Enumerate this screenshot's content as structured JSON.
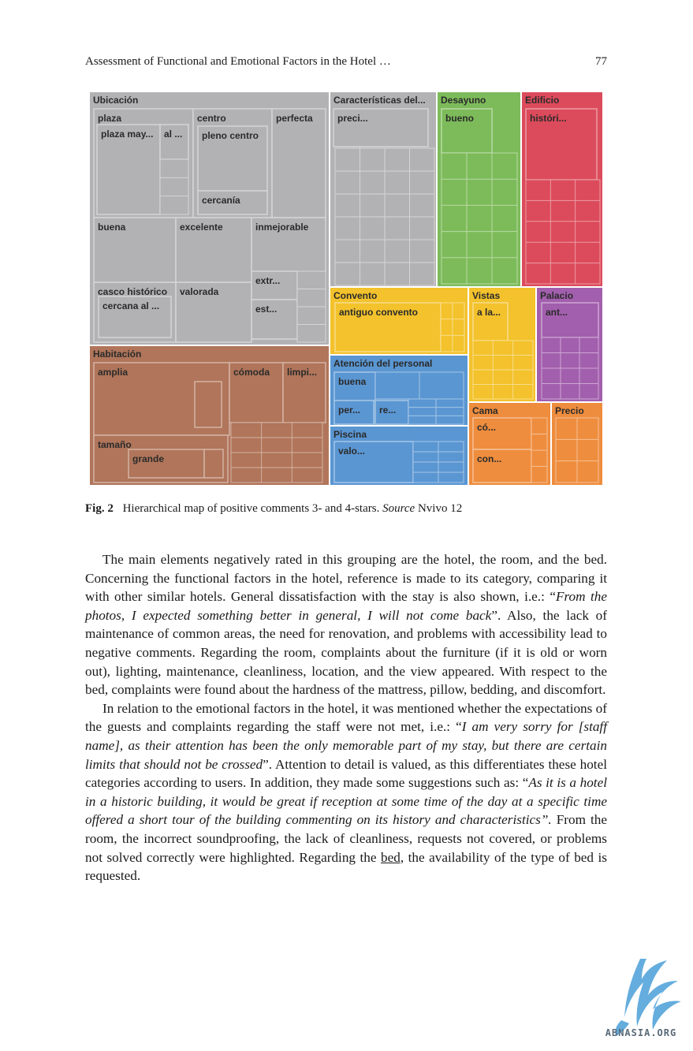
{
  "running_head": {
    "title": "Assessment of Functional and Emotional Factors in the Hotel …",
    "page_number": "77"
  },
  "figure": {
    "label": "Fig. 2",
    "caption_main": "Hierarchical map of positive comments 3- and 4-stars.",
    "caption_source_italic": "Source",
    "caption_source_rest": "Nvivo 12"
  },
  "chart_data": {
    "type": "treemap",
    "groups": [
      {
        "name": "Ubicación",
        "color": "#b2b2b4",
        "children": [
          "plaza",
          "plaza may...",
          "al ...",
          "centro",
          "pleno centro",
          "cercanía",
          "perfecta",
          "buena",
          "excelente",
          "inmejorable",
          "casco histórico",
          "cercana al ...",
          "valorada",
          "extr...",
          "est..."
        ]
      },
      {
        "name": "Características del...",
        "color": "#b2b2b4",
        "children": [
          "preci..."
        ]
      },
      {
        "name": "Desayuno",
        "color": "#7dbb5a",
        "children": [
          "bueno"
        ]
      },
      {
        "name": "Edificio",
        "color": "#dc4b5b",
        "children": [
          "históri..."
        ]
      },
      {
        "name": "Convento",
        "color": "#f3c22c",
        "children": [
          "antiguo convento"
        ]
      },
      {
        "name": "Vistas",
        "color": "#f3c22c",
        "children": [
          "a la..."
        ]
      },
      {
        "name": "Palacio",
        "color": "#a25fad",
        "children": [
          "ant..."
        ]
      },
      {
        "name": "Habitación",
        "color": "#b0755a",
        "children": [
          "amplia",
          "cómoda",
          "limpi...",
          "tamaño",
          "grande"
        ]
      },
      {
        "name": "Atención del personal",
        "color": "#5a96d2",
        "children": [
          "buena",
          "per...",
          "re..."
        ]
      },
      {
        "name": "Piscina",
        "color": "#5a96d2",
        "children": [
          "valo..."
        ]
      },
      {
        "name": "Cama",
        "color": "#ee8d3e",
        "children": [
          "có...",
          "con..."
        ]
      },
      {
        "name": "Precio",
        "color": "#ee8d3e",
        "children": []
      }
    ]
  },
  "body": {
    "p1_a": "The main elements negatively rated in this grouping are the hotel, the room, and the bed. Concerning the functional factors in the hotel, reference is made to its category, comparing it with other similar hotels. General dissatisfaction with the stay is also shown, i.e.: “",
    "p1_quote": "From the photos, I expected something better in general, I will not come back",
    "p1_b": "”. Also, the lack of maintenance of common areas, the need for renovation, and problems with accessibility lead to negative comments. Regarding the room, complaints about the furniture (if it is old or worn out), lighting, maintenance, cleanliness, location, and the view appeared. With respect to the bed, complaints were found about the hardness of the mattress, pillow, bedding, and discomfort.",
    "p2_a": "In relation to the emotional factors in the hotel, it was mentioned whether the expectations of the guests and complaints regarding the staff were not met, i.e.: “",
    "p2_quote1": "I am very sorry for [staff name], as their attention has been the only memorable part of my stay, but there are certain limits that should not be crossed",
    "p2_b": "”. Attention to detail is valued, as this differentiates these hotel categories according to users. In addition, they made some suggestions such as: “",
    "p2_quote2": "As it is a hotel in a historic building, it would be great if reception at some time of the day at a specific time offered a short tour of the building commenting on its history and characteristics”.",
    "p2_c": " From the room, the incorrect soundproofing, the lack of cleanliness, requests not covered, or problems not solved correctly were highlighted. Regarding the ",
    "p2_underlined": "bed,",
    "p2_d": " the availability of the type of bed is requested."
  },
  "watermark": {
    "text": "ABNASIA.ORG",
    "color": "#4a9fd8"
  }
}
